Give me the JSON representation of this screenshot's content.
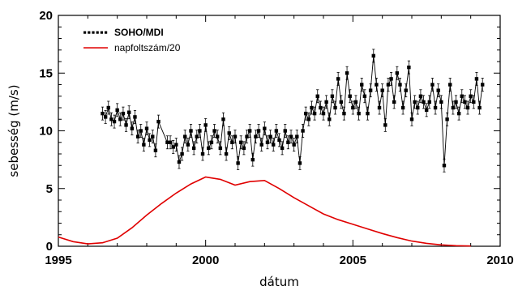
{
  "chart_data": {
    "type": "line",
    "xlabel": "dátum",
    "ylabel": "sebesség (m/s)",
    "xlim": [
      1995,
      2010
    ],
    "ylim": [
      0,
      20
    ],
    "x_ticks": [
      1995,
      2000,
      2005,
      2010
    ],
    "y_ticks": [
      0,
      5,
      10,
      15,
      20
    ],
    "grid": false,
    "legend_position": "top-left",
    "series": [
      {
        "name": "SOHO/MDI",
        "style": "dotted-markers-with-errorbars",
        "color": "#000000",
        "x": [
          1996.5,
          1996.6,
          1996.7,
          1996.8,
          1996.9,
          1997.0,
          1997.1,
          1997.2,
          1997.3,
          1997.4,
          1997.5,
          1997.6,
          1997.7,
          1997.8,
          1997.9,
          1998.0,
          1998.1,
          1998.2,
          1998.3,
          1998.4,
          1998.7,
          1998.8,
          1998.9,
          1999.0,
          1999.1,
          1999.2,
          1999.3,
          1999.4,
          1999.5,
          1999.6,
          1999.7,
          1999.8,
          1999.9,
          2000.0,
          2000.1,
          2000.2,
          2000.3,
          2000.4,
          2000.5,
          2000.6,
          2000.7,
          2000.8,
          2000.9,
          2001.0,
          2001.1,
          2001.2,
          2001.3,
          2001.4,
          2001.5,
          2001.6,
          2001.7,
          2001.8,
          2001.9,
          2002.0,
          2002.1,
          2002.2,
          2002.3,
          2002.4,
          2002.5,
          2002.6,
          2002.7,
          2002.8,
          2002.9,
          2003.0,
          2003.1,
          2003.2,
          2003.3,
          2003.4,
          2003.5,
          2003.6,
          2003.7,
          2003.8,
          2003.9,
          2004.0,
          2004.1,
          2004.2,
          2004.3,
          2004.4,
          2004.5,
          2004.6,
          2004.7,
          2004.8,
          2004.9,
          2005.0,
          2005.1,
          2005.2,
          2005.3,
          2005.4,
          2005.5,
          2005.6,
          2005.7,
          2005.8,
          2005.9,
          2006.0,
          2006.1,
          2006.2,
          2006.3,
          2006.4,
          2006.5,
          2006.6,
          2006.7,
          2006.8,
          2006.9,
          2007.0,
          2007.1,
          2007.2,
          2007.3,
          2007.4,
          2007.5,
          2007.6,
          2007.7,
          2007.8,
          2007.9,
          2008.0,
          2008.1,
          2008.2,
          2008.3,
          2008.4,
          2008.5,
          2008.6,
          2008.7,
          2008.8,
          2008.9,
          2009.0,
          2009.1,
          2009.2,
          2009.3,
          2009.4
        ],
        "y": [
          11.5,
          11.2,
          12.0,
          11.0,
          10.8,
          11.8,
          11.0,
          11.5,
          10.5,
          11.6,
          10.2,
          11.2,
          9.5,
          10.0,
          8.8,
          10.2,
          9.2,
          9.5,
          8.3,
          10.8,
          9.0,
          9.0,
          8.6,
          8.8,
          7.3,
          8.0,
          9.5,
          8.8,
          10.0,
          8.5,
          9.5,
          10.0,
          8.0,
          10.5,
          8.5,
          9.0,
          10.0,
          9.5,
          8.5,
          11.0,
          8.0,
          9.8,
          9.0,
          9.5,
          7.2,
          9.0,
          8.5,
          9.5,
          10.0,
          7.5,
          9.5,
          10.0,
          8.8,
          10.2,
          9.0,
          9.5,
          8.8,
          10.0,
          9.2,
          8.5,
          10.0,
          9.0,
          9.5,
          8.8,
          9.5,
          7.2,
          10.0,
          11.5,
          11.0,
          12.0,
          11.5,
          13.0,
          12.0,
          11.5,
          12.5,
          11.0,
          13.0,
          12.0,
          14.5,
          12.5,
          11.5,
          15.0,
          13.0,
          12.0,
          12.5,
          11.5,
          14.0,
          13.0,
          11.5,
          13.5,
          16.5,
          14.0,
          12.0,
          13.5,
          10.5,
          14.0,
          14.5,
          12.5,
          15.0,
          14.0,
          12.0,
          13.5,
          15.5,
          11.0,
          12.5,
          12.0,
          13.0,
          12.5,
          11.8,
          12.5,
          14.0,
          12.0,
          13.5,
          12.5,
          7.0,
          11.0,
          14.0,
          12.0,
          12.5,
          11.5,
          13.0,
          12.5,
          12.0,
          13.0,
          12.5,
          14.5,
          12.0,
          14.0
        ]
      },
      {
        "name": "napfoltszám/20",
        "style": "line",
        "color": "#e00000",
        "x": [
          1995.0,
          1995.5,
          1996.0,
          1996.5,
          1997.0,
          1997.5,
          1998.0,
          1998.5,
          1999.0,
          1999.5,
          2000.0,
          2000.5,
          2001.0,
          2001.5,
          2002.0,
          2002.5,
          2003.0,
          2003.5,
          2004.0,
          2004.5,
          2005.0,
          2005.5,
          2006.0,
          2006.5,
          2007.0,
          2007.5,
          2008.0,
          2008.5,
          2009.0
        ],
        "y": [
          0.8,
          0.4,
          0.2,
          0.3,
          0.7,
          1.6,
          2.7,
          3.7,
          4.6,
          5.4,
          6.0,
          5.8,
          5.3,
          5.6,
          5.7,
          5.0,
          4.2,
          3.5,
          2.8,
          2.3,
          1.9,
          1.5,
          1.1,
          0.75,
          0.45,
          0.25,
          0.12,
          0.05,
          0.02
        ]
      }
    ]
  },
  "legend": {
    "items": [
      {
        "label": "SOHO/MDI",
        "marker": "dots",
        "color": "#000000"
      },
      {
        "label": "napfoltszám/20",
        "marker": "line",
        "color": "#e00000"
      }
    ]
  }
}
